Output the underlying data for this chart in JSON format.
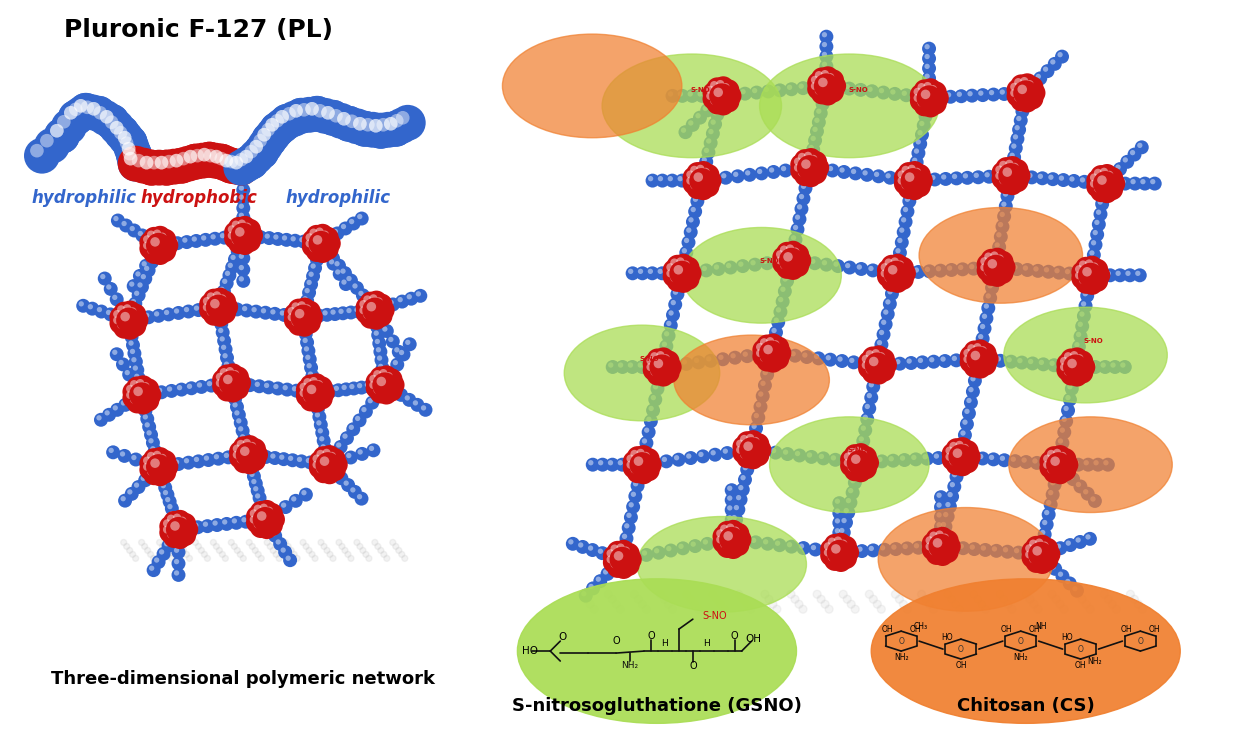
{
  "title": "Pluronic F-127 (PL)",
  "label_hydrophilic": "hydrophilic",
  "label_hydrophobic": "hydrophobic",
  "label_network": "Three-dimensional polymeric network",
  "label_gsno": "S-nitrosogluthatione (GSNO)",
  "label_cs": "Chitosan (CS)",
  "blue": "#3366cc",
  "red": "#cc1111",
  "green": "#aadd55",
  "orange": "#f08030",
  "bg": "#ffffff",
  "chain_sphere_r": 18,
  "net_bead_r": 6,
  "net_bead_n": 10
}
